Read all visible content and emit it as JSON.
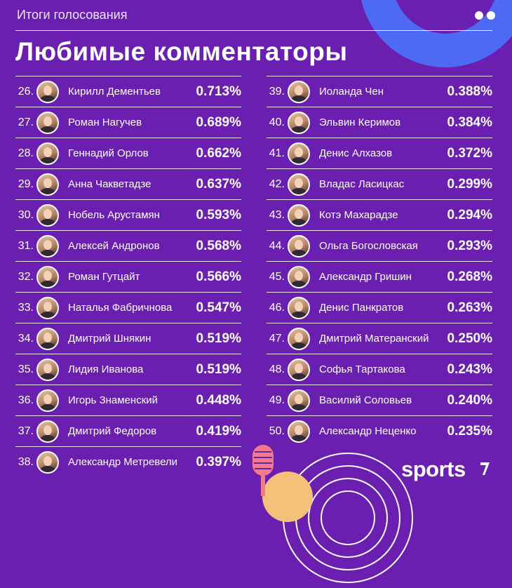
{
  "header": {
    "subtitle": "Итоги голосования",
    "title": "Любимые комментаторы"
  },
  "left_column": [
    {
      "rank": "26.",
      "name": "Кирилл Дементьев",
      "value": "0.713%"
    },
    {
      "rank": "27.",
      "name": "Роман Нагучев",
      "value": "0.689%"
    },
    {
      "rank": "28.",
      "name": "Геннадий Орлов",
      "value": "0.662%"
    },
    {
      "rank": "29.",
      "name": "Анна Чакветадзе",
      "value": "0.637%"
    },
    {
      "rank": "30.",
      "name": "Нобель Арустамян",
      "value": "0.593%"
    },
    {
      "rank": "31.",
      "name": "Алексей Андронов",
      "value": "0.568%"
    },
    {
      "rank": "32.",
      "name": "Роман Гутцайт",
      "value": "0.566%"
    },
    {
      "rank": "33.",
      "name": "Наталья Фабричнова",
      "value": "0.547%"
    },
    {
      "rank": "34.",
      "name": "Дмитрий Шнякин",
      "value": "0.519%"
    },
    {
      "rank": "35.",
      "name": "Лидия Иванова",
      "value": "0.519%"
    },
    {
      "rank": "36.",
      "name": "Игорь Знаменский",
      "value": "0.448%"
    },
    {
      "rank": "37.",
      "name": "Дмитрий Федоров",
      "value": "0.419%"
    },
    {
      "rank": "38.",
      "name": "Александр Метревели",
      "value": "0.397%"
    }
  ],
  "right_column": [
    {
      "rank": "39.",
      "name": "Иоланда Чен",
      "value": "0.388%"
    },
    {
      "rank": "40.",
      "name": "Эльвин Керимов",
      "value": "0.384%"
    },
    {
      "rank": "41.",
      "name": "Денис Алхазов",
      "value": "0.372%"
    },
    {
      "rank": "42.",
      "name": "Владас Ласицкас",
      "value": "0.299%"
    },
    {
      "rank": "43.",
      "name": "Котэ Махарадзе",
      "value": "0.294%"
    },
    {
      "rank": "44.",
      "name": "Ольга Богословская",
      "value": "0.293%"
    },
    {
      "rank": "45.",
      "name": "Александр Гришин",
      "value": "0.268%"
    },
    {
      "rank": "46.",
      "name": "Денис Панкратов",
      "value": "0.263%"
    },
    {
      "rank": "47.",
      "name": "Дмитрий Матеранский",
      "value": "0.250%"
    },
    {
      "rank": "48.",
      "name": "Софья Тартакова",
      "value": "0.243%"
    },
    {
      "rank": "49.",
      "name": "Василий Соловьев",
      "value": "0.240%"
    },
    {
      "rank": "50.",
      "name": "Александр Неценко",
      "value": "0.235%"
    }
  ],
  "brand": {
    "logo_text": "sports",
    "colors": {
      "background": "#6a1fb0",
      "accent_blue": "#4e6af3",
      "accent_yellow": "#f4c07a",
      "accent_pink": "#f07a8a"
    }
  }
}
